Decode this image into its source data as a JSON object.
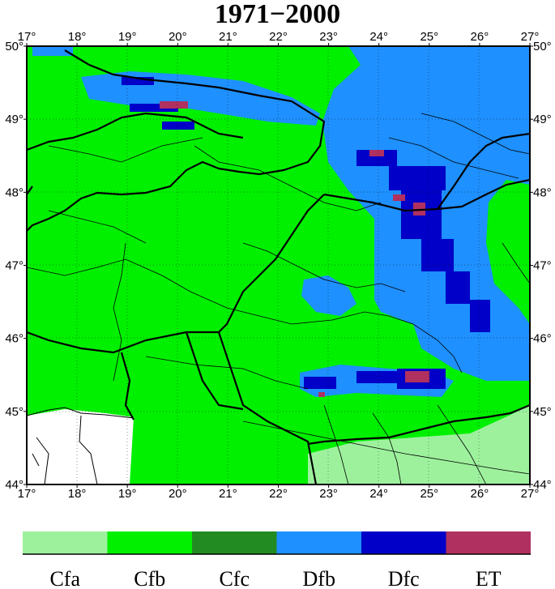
{
  "title": "1971−2000",
  "lon_ticks": [
    "17°",
    "18°",
    "19°",
    "20°",
    "21°",
    "22°",
    "23°",
    "24°",
    "25°",
    "26°",
    "27°"
  ],
  "lat_ticks": [
    "50°",
    "49°",
    "48°",
    "47°",
    "46°",
    "45°",
    "44°"
  ],
  "extent": {
    "lon": [
      17,
      27
    ],
    "lat": [
      44,
      50
    ]
  },
  "legend": [
    {
      "code": "Cfa",
      "color": "#9df19d"
    },
    {
      "code": "Cfb",
      "color": "#00f000"
    },
    {
      "code": "Cfc",
      "color": "#228b22"
    },
    {
      "code": "Dfb",
      "color": "#1e90ff"
    },
    {
      "code": "Dfc",
      "color": "#0000c8"
    },
    {
      "code": "ET",
      "color": "#b03060"
    }
  ],
  "colors": {
    "sea": "#ffffff",
    "border": "#000000"
  }
}
